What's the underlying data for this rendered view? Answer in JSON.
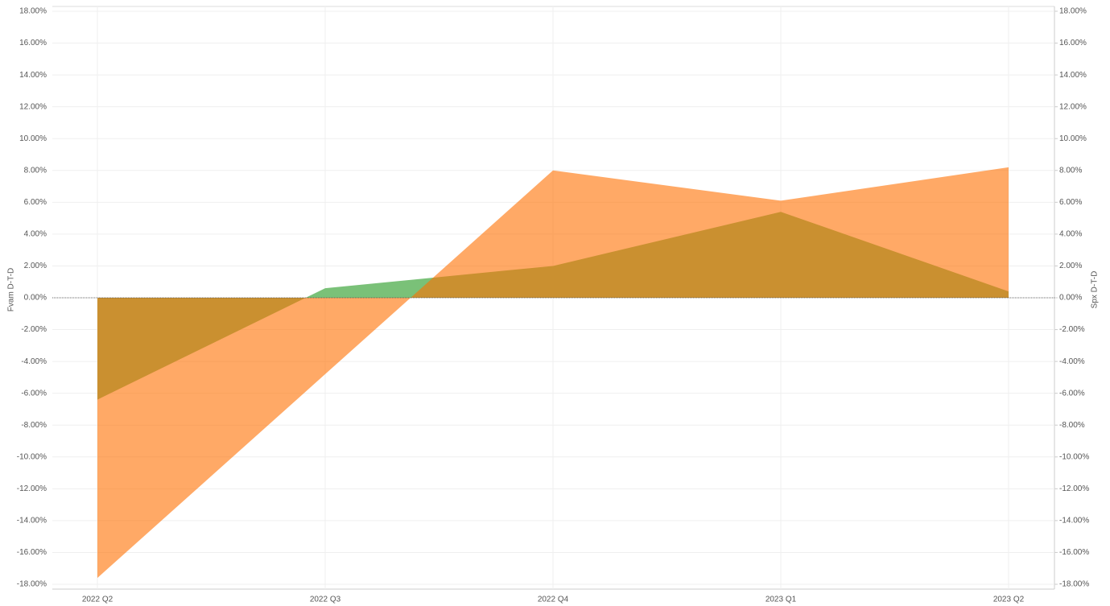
{
  "chart_data": {
    "type": "area",
    "categories": [
      "2022 Q2",
      "2022 Q3",
      "2022 Q4",
      "2023 Q1",
      "2023 Q2"
    ],
    "y_label": "Fvam D-T-D",
    "y2_label": "Spx D-T-D",
    "series": [
      {
        "name": "Fvam D-T-D",
        "color": "#7ac178",
        "values": [
          -6.4,
          0.6,
          2.0,
          5.4,
          0.4
        ]
      },
      {
        "name": "Spx D-T-D",
        "color": "#ff7000",
        "axis": "y2",
        "values": [
          -17.6,
          -4.8,
          8.0,
          6.1,
          8.2
        ]
      }
    ],
    "ylim": [
      -18,
      18
    ],
    "y2lim": [
      -18,
      18
    ],
    "yticks": [
      {
        "value": 18,
        "label": "18.00%"
      },
      {
        "value": 16,
        "label": "16.00%"
      },
      {
        "value": 14,
        "label": "14.00%"
      },
      {
        "value": 12,
        "label": "12.00%"
      },
      {
        "value": 10,
        "label": "10.00%"
      },
      {
        "value": 8,
        "label": "8.00%"
      },
      {
        "value": 6,
        "label": "6.00%"
      },
      {
        "value": 4,
        "label": "4.00%"
      },
      {
        "value": 2,
        "label": "2.00%"
      },
      {
        "value": 0,
        "label": "0.00%"
      },
      {
        "value": -2,
        "label": "-2.00%"
      },
      {
        "value": -4,
        "label": "-4.00%"
      },
      {
        "value": -6,
        "label": "-6.00%"
      },
      {
        "value": -8,
        "label": "-8.00%"
      },
      {
        "value": -10,
        "label": "-10.00%"
      },
      {
        "value": -12,
        "label": "-12.00%"
      },
      {
        "value": -14,
        "label": "-14.00%"
      },
      {
        "value": -16,
        "label": "-16.00%"
      },
      {
        "value": -18,
        "label": "-18.00%"
      }
    ],
    "y2ticks": [
      {
        "value": 18,
        "label": "18.00%"
      },
      {
        "value": 16,
        "label": "16.00%"
      },
      {
        "value": 14,
        "label": "14.00%"
      },
      {
        "value": 12,
        "label": "12.00%"
      },
      {
        "value": 10,
        "label": "10.00%"
      },
      {
        "value": 8,
        "label": "8.00%"
      },
      {
        "value": 6,
        "label": "6.00%"
      },
      {
        "value": 4,
        "label": "4.00%"
      },
      {
        "value": 2,
        "label": "2.00%"
      },
      {
        "value": 0,
        "label": "0.00%"
      },
      {
        "value": -2,
        "label": "-2.00%"
      },
      {
        "value": -4,
        "label": "-4.00%"
      },
      {
        "value": -6,
        "label": "-6.00%"
      },
      {
        "value": -8,
        "label": "-8.00%"
      },
      {
        "value": -10,
        "label": "-10.00%"
      },
      {
        "value": -12,
        "label": "-12.00%"
      },
      {
        "value": -14,
        "label": "-14.00%"
      },
      {
        "value": -16,
        "label": "-16.00%"
      },
      {
        "value": -18,
        "label": "-18.00%"
      }
    ],
    "grid": true
  }
}
